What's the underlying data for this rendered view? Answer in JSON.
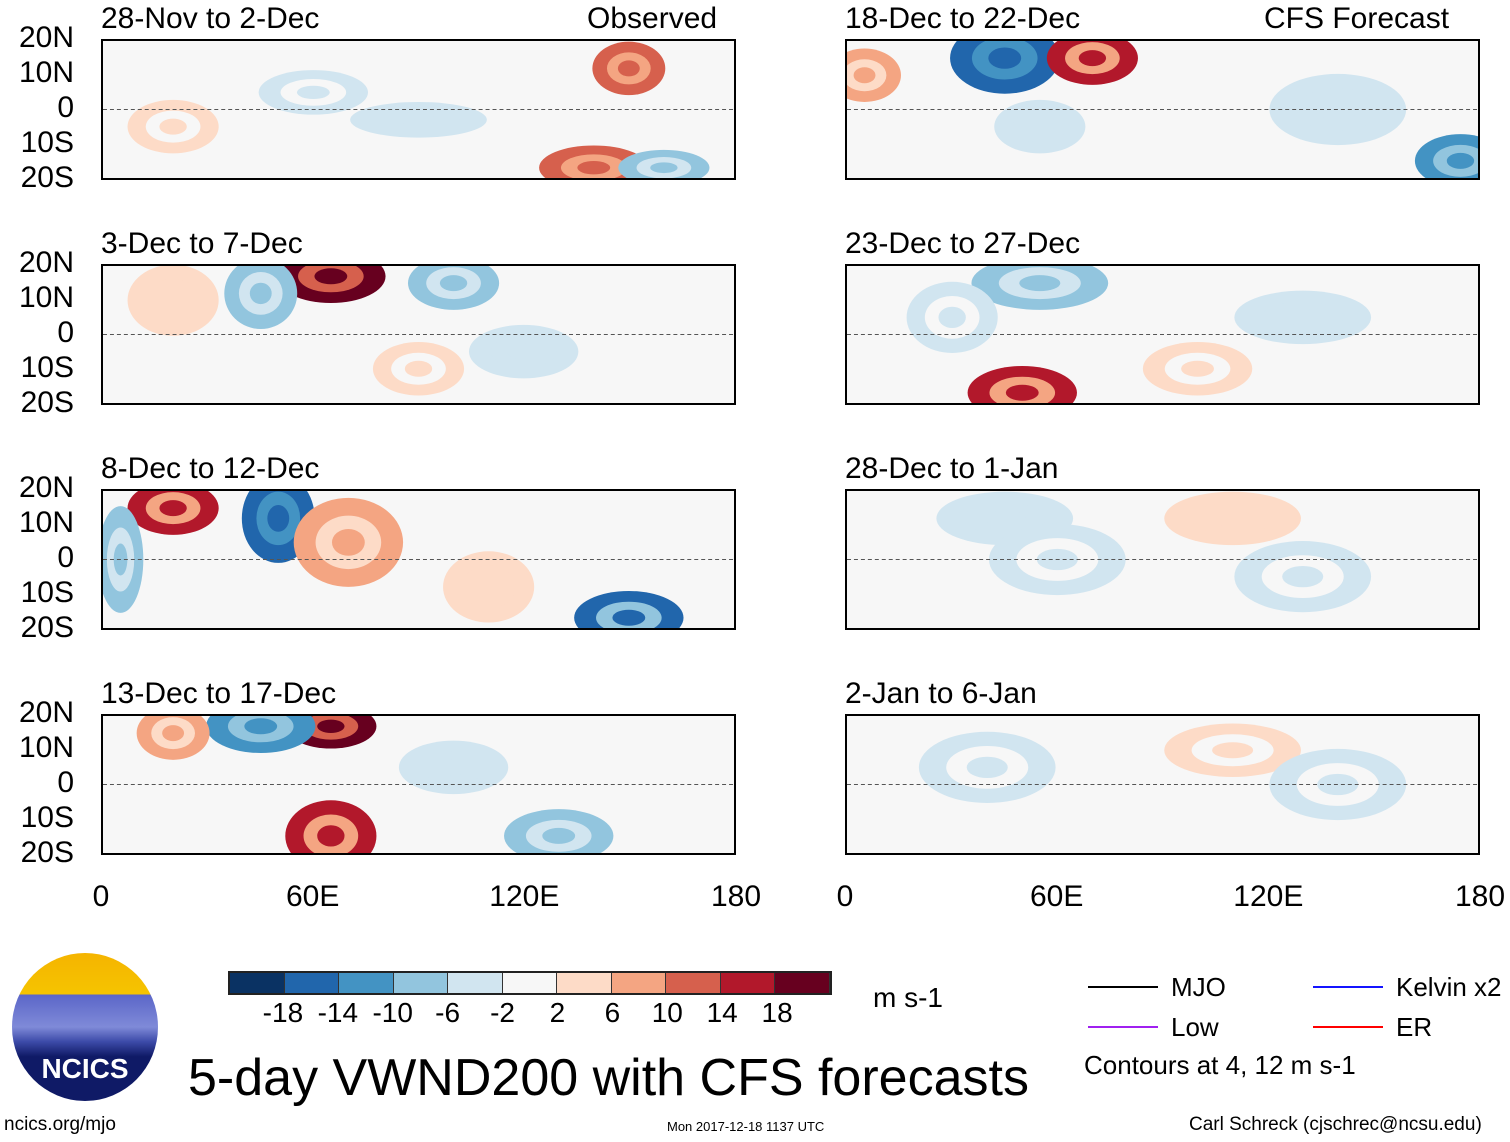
{
  "chart_data": {
    "type": "heatmap",
    "title": "5-day VWND200 with CFS forecasts",
    "variable": "VWND200",
    "units": "m s-1",
    "xlim": [
      0,
      180
    ],
    "ylim": [
      -20,
      20
    ],
    "x_ticks": [
      "0",
      "60E",
      "120E",
      "180"
    ],
    "y_ticks": [
      "20N",
      "10N",
      "0",
      "10S",
      "20S"
    ],
    "colorbar": {
      "levels": [
        "-18",
        "-14",
        "-10",
        "-6",
        "-2",
        "2",
        "6",
        "10",
        "14",
        "18"
      ],
      "colors": [
        "#0a3263",
        "#2166ac",
        "#4393c3",
        "#92c5de",
        "#d1e5f0",
        "#f7f7f7",
        "#fddbc7",
        "#f4a582",
        "#d6604d",
        "#b2182b",
        "#67001f"
      ]
    },
    "columns": [
      {
        "label": "Observed"
      },
      {
        "label": "CFS Forecast"
      }
    ],
    "panels": [
      {
        "title": "28-Nov to 2-Dec",
        "blobs": [
          [
            150,
            12,
            8,
            6,
            10
          ],
          [
            140,
            -17,
            12,
            5,
            12
          ],
          [
            160,
            -17,
            10,
            4,
            -10
          ],
          [
            90,
            -3,
            15,
            4,
            -4
          ],
          [
            20,
            -5,
            10,
            6,
            3
          ],
          [
            60,
            5,
            12,
            5,
            -3
          ]
        ]
      },
      {
        "title": "3-Dec to 7-Dec",
        "blobs": [
          [
            65,
            17,
            12,
            6,
            18
          ],
          [
            45,
            12,
            8,
            8,
            -10
          ],
          [
            20,
            10,
            10,
            8,
            4
          ],
          [
            100,
            15,
            10,
            6,
            -8
          ],
          [
            90,
            -10,
            10,
            6,
            3
          ],
          [
            120,
            -5,
            12,
            6,
            -4
          ]
        ]
      },
      {
        "title": "8-Dec to 12-Dec",
        "blobs": [
          [
            50,
            12,
            8,
            10,
            -18
          ],
          [
            20,
            15,
            10,
            6,
            14
          ],
          [
            70,
            5,
            12,
            10,
            8
          ],
          [
            5,
            0,
            5,
            12,
            -10
          ],
          [
            150,
            -17,
            12,
            6,
            -16
          ],
          [
            110,
            -8,
            10,
            8,
            4
          ]
        ]
      },
      {
        "title": "13-Dec to 17-Dec",
        "blobs": [
          [
            65,
            17,
            10,
            5,
            18
          ],
          [
            45,
            17,
            12,
            6,
            -12
          ],
          [
            65,
            -15,
            10,
            8,
            16
          ],
          [
            130,
            -15,
            12,
            6,
            -8
          ],
          [
            20,
            15,
            8,
            6,
            6
          ],
          [
            100,
            5,
            12,
            6,
            -4
          ]
        ]
      },
      {
        "title": "18-Dec to 22-Dec",
        "blobs": [
          [
            45,
            15,
            12,
            8,
            -18
          ],
          [
            70,
            15,
            10,
            6,
            14
          ],
          [
            175,
            -15,
            10,
            6,
            -12
          ],
          [
            140,
            0,
            15,
            8,
            -4
          ],
          [
            5,
            10,
            8,
            6,
            6
          ],
          [
            55,
            -5,
            10,
            6,
            -6
          ]
        ]
      },
      {
        "title": "23-Dec to 27-Dec",
        "blobs": [
          [
            50,
            -17,
            12,
            6,
            14
          ],
          [
            55,
            15,
            15,
            6,
            -10
          ],
          [
            130,
            5,
            15,
            6,
            -4
          ],
          [
            100,
            -10,
            12,
            6,
            3
          ],
          [
            30,
            5,
            10,
            8,
            -3
          ]
        ]
      },
      {
        "title": "28-Dec to 1-Jan",
        "blobs": [
          [
            45,
            12,
            15,
            6,
            -6
          ],
          [
            110,
            12,
            15,
            6,
            4
          ],
          [
            60,
            0,
            15,
            8,
            -3
          ],
          [
            130,
            -5,
            15,
            8,
            -3
          ]
        ]
      },
      {
        "title": "2-Jan to 6-Jan",
        "blobs": [
          [
            40,
            5,
            15,
            8,
            -3
          ],
          [
            110,
            10,
            15,
            6,
            3
          ],
          [
            140,
            0,
            15,
            8,
            -3
          ]
        ]
      }
    ]
  },
  "headings": {
    "observed": "Observed",
    "forecast": "CFS Forecast"
  },
  "colorbar_units": "m s-1",
  "legend": {
    "items": [
      {
        "label": "MJO",
        "color": "#000000"
      },
      {
        "label": "Kelvin x2",
        "color": "#1414ff"
      },
      {
        "label": "Low",
        "color": "#a020f0"
      },
      {
        "label": "ER",
        "color": "#ff0000"
      }
    ],
    "note": "Contours at 4, 12 m s-1"
  },
  "logo": "NCICS",
  "footer": {
    "left": "ncics.org/mjo",
    "center": "Mon 2017-12-18 1137 UTC",
    "right": "Carl Schreck (cjschrec@ncsu.edu)"
  }
}
